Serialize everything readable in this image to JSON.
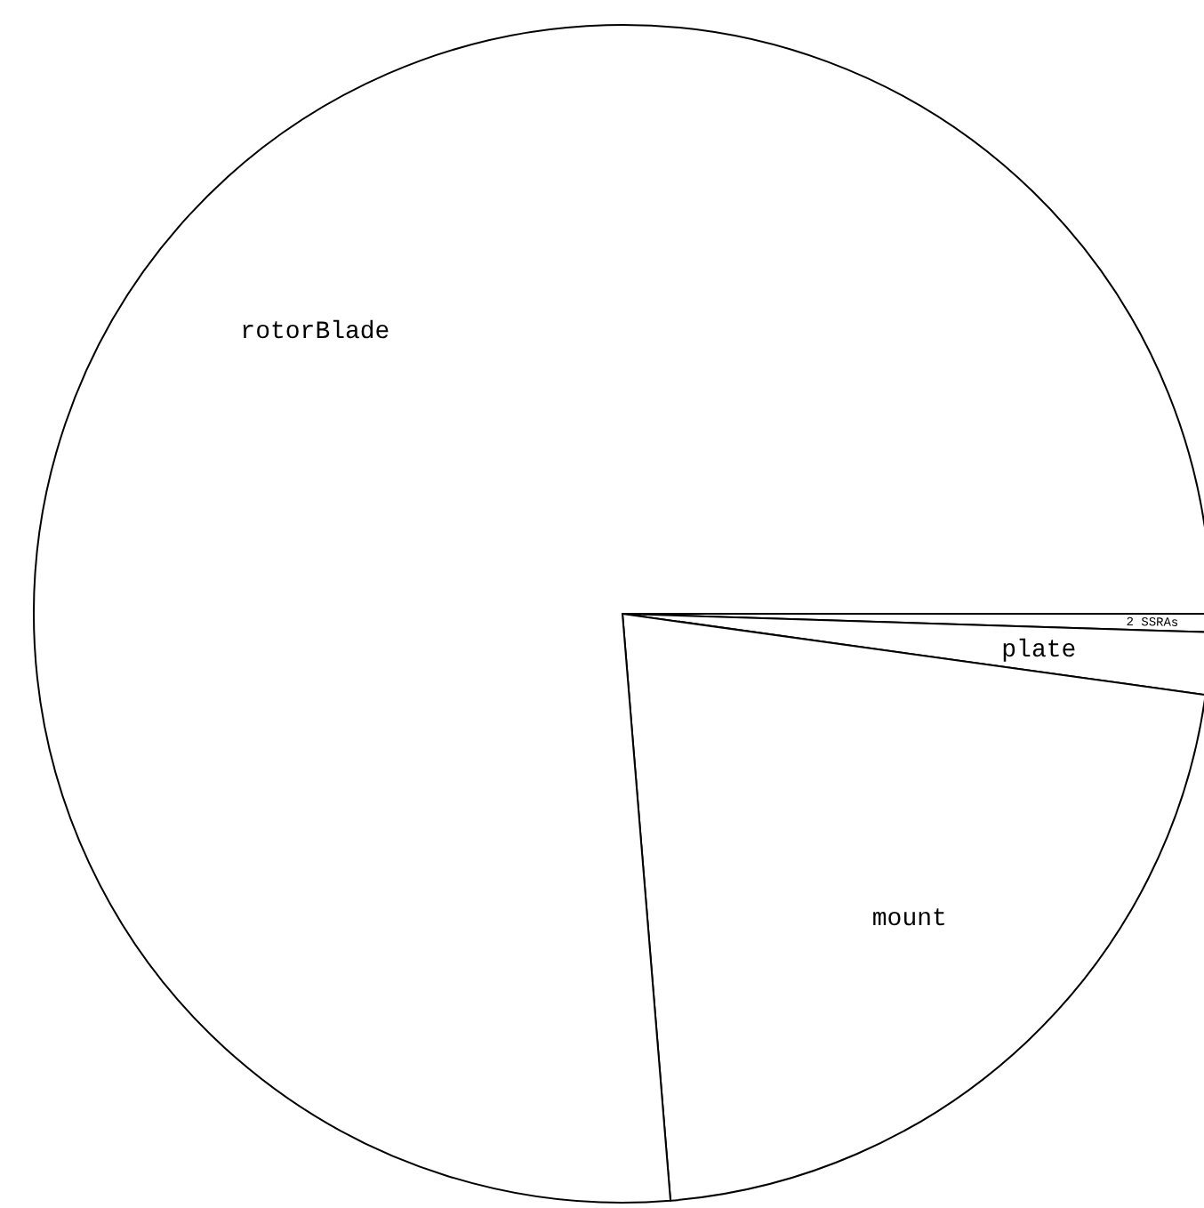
{
  "chart_data": {
    "type": "pie",
    "categories": [
      "2 SSRAs",
      "plate",
      "mount",
      "rotorBlade"
    ],
    "values": [
      0.5,
      1.7,
      21.5,
      76.3
    ],
    "colors": [
      "#ffffff",
      "#ffffff",
      "#ffffff",
      "#ffffff"
    ]
  }
}
